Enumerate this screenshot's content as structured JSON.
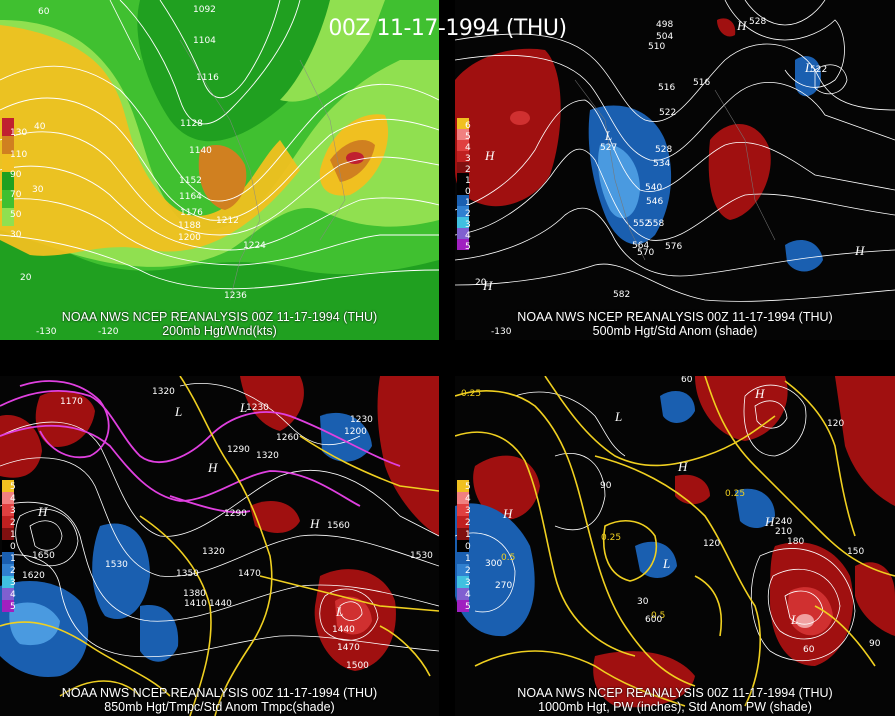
{
  "title": "00Z 11-17-1994 (THU)",
  "panels": {
    "top_left": {
      "caption1": "NOAA NWS NCEP REANALYSIS 00Z 11-17-1994 (THU)",
      "caption2": "200mb Hgt/Wnd(kts)",
      "scale_labels": [
        "130",
        "110",
        "90",
        "70",
        "50",
        "30"
      ],
      "contour_labels": [
        "1092",
        "1104",
        "1116",
        "1128",
        "1140",
        "1152",
        "1164",
        "1176",
        "1188",
        "1200",
        "1212",
        "1224",
        "1236"
      ],
      "axis_labels": [
        "-130",
        "-120",
        "60",
        "40",
        "30",
        "20"
      ]
    },
    "top_right": {
      "caption1": "NOAA NWS NCEP REANALYSIS 00Z 11-17-1994 (THU)",
      "caption2": "500mb Hgt/Std Anom (shade)",
      "scale_labels": [
        "6",
        "5",
        "4",
        "3",
        "2",
        "1",
        "0",
        "1",
        "2",
        "3",
        "4",
        "5"
      ],
      "contour_labels": [
        "498",
        "504",
        "510",
        "516",
        "522",
        "528",
        "534",
        "540",
        "546",
        "552",
        "558",
        "564",
        "570",
        "576",
        "582",
        "516",
        "522",
        "527",
        "528"
      ],
      "hl_labels": [
        "H",
        "L",
        "H",
        "L",
        "H",
        "H"
      ],
      "axis_labels": [
        "-130",
        "20"
      ]
    },
    "bottom_left": {
      "caption1": "NOAA NWS NCEP REANALYSIS 00Z 11-17-1994 (THU)",
      "caption2": "850mb Hgt/Tmpc/Std Anom Tmpc(shade)",
      "scale_labels": [
        "5",
        "4",
        "3",
        "2",
        "1",
        "0",
        "1",
        "2",
        "3",
        "4",
        "5"
      ],
      "contour_labels": [
        "1170",
        "1320",
        "1230",
        "1200",
        "1260",
        "1290",
        "1320",
        "1290",
        "1560",
        "1530",
        "1350",
        "1380",
        "1410",
        "1440",
        "1470",
        "1440",
        "1470",
        "1500",
        "1530",
        "1620",
        "1650",
        "1320",
        "1230"
      ],
      "hl_labels": [
        "H",
        "L",
        "H",
        "H",
        "L",
        "L"
      ]
    },
    "bottom_right": {
      "caption1": "NOAA NWS NCEP REANALYSIS 00Z 11-17-1994 (THU)",
      "caption2": "1000mb Hgt, PW (inches), Std Anom PW (shade)",
      "scale_labels": [
        "5",
        "4",
        "3",
        "2",
        "1",
        "0",
        "1",
        "2",
        "3",
        "4",
        "5"
      ],
      "contour_labels": [
        "0.25",
        "0.25",
        "0.5",
        "0.25",
        "0.5",
        "60",
        "90",
        "120",
        "150",
        "180",
        "210",
        "240",
        "270",
        "300",
        "30",
        "60",
        "90",
        "120",
        "600"
      ],
      "hl_labels": [
        "H",
        "L",
        "H",
        "H",
        "L",
        "L",
        "H"
      ]
    }
  },
  "colors": {
    "wind_light": "#90e050",
    "wind_mid": "#40c030",
    "wind_dark": "#20a020",
    "wind_yellow": "#f0c020",
    "wind_orange": "#d08020",
    "wind_red": "#c02030",
    "anom_pos": "#a01010",
    "anom_pos2": "#d03030",
    "anom_neg": "#1a5fb0",
    "anom_neg2": "#4a9ae0",
    "temp_contour": "#e040e0",
    "pw_contour": "#f0d020"
  }
}
